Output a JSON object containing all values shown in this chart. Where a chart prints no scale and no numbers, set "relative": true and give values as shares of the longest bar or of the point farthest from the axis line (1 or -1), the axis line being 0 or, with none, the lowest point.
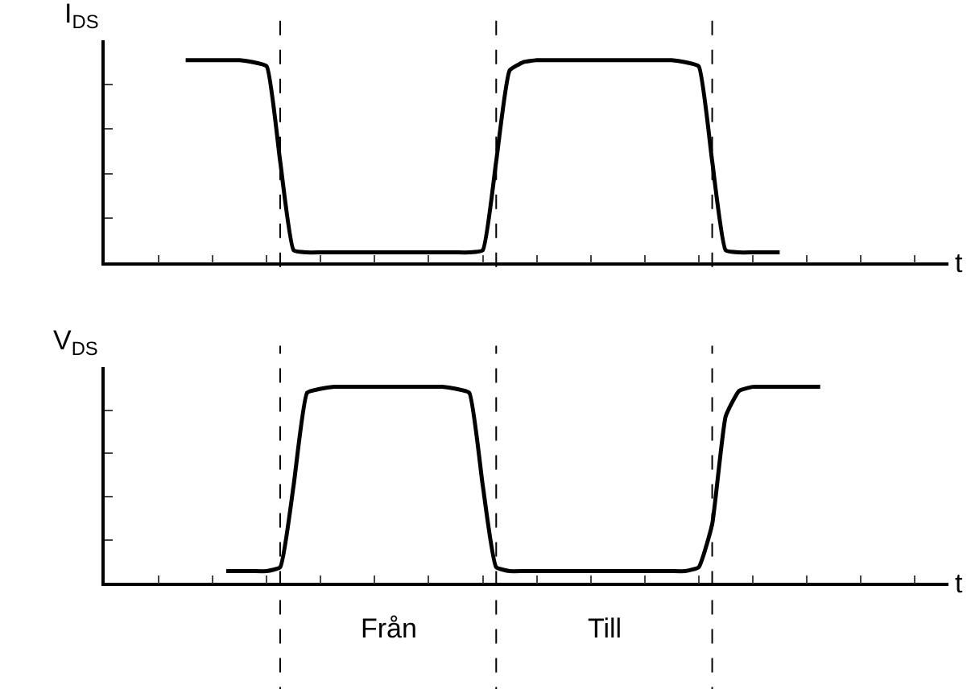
{
  "chart_data": [
    {
      "type": "line",
      "relative": true,
      "ylabel": "I$_{DS}$",
      "xlabel": "t",
      "grid": "x",
      "categories": [
        null,
        null,
        null,
        null,
        null,
        null,
        null,
        null,
        null,
        null,
        null,
        null,
        null,
        null,
        null,
        null,
        null,
        null,
        null,
        null,
        null,
        null,
        null,
        null,
        null,
        null,
        null,
        null,
        null,
        null,
        null,
        null,
        null,
        null,
        null,
        null,
        null,
        null,
        null,
        null,
        null,
        null,
        null,
        null,
        null,
        null,
        null,
        null,
        null,
        null,
        null,
        null,
        null,
        null,
        null,
        null,
        null,
        null,
        null,
        null,
        null,
        null,
        null
      ],
      "series": [
        {
          "color": "#000000",
          "values": [
            null,
            null,
            null,
            null,
            null,
            null,
            1,
            1,
            1,
            1,
            1,
            0.99,
            0.97,
            0.5,
            0.06,
            0.05,
            0.05,
            0.05,
            0.05,
            0.05,
            0.05,
            0.05,
            0.05,
            0.05,
            0.05,
            0.05,
            0.05,
            0.05,
            0.06,
            0.5,
            0.95,
            0.99,
            1,
            1,
            1,
            1,
            1,
            1,
            1,
            1,
            1,
            1,
            1,
            0.99,
            0.97,
            0.5,
            0.06,
            0.05,
            0.05,
            0.05,
            0.05,
            null,
            null,
            null,
            null,
            null,
            null,
            null,
            null,
            null,
            null,
            null,
            null
          ]
        }
      ]
    },
    {
      "type": "line",
      "relative": true,
      "ylabel": "V$_{DS}$",
      "xlabel": "t",
      "grid": "x",
      "categories": [
        null,
        null,
        null,
        null,
        null,
        null,
        null,
        null,
        null,
        null,
        null,
        null,
        null,
        null,
        null,
        null,
        null,
        null,
        null,
        null,
        null,
        null,
        null,
        null,
        null,
        null,
        null,
        null,
        null,
        null,
        null,
        null,
        null,
        null,
        null,
        null,
        null,
        null,
        null,
        null,
        null,
        null,
        null,
        null,
        null,
        null,
        null,
        null,
        null,
        null,
        null,
        null,
        null,
        null,
        null,
        null,
        null,
        null,
        null,
        null,
        null,
        null,
        null
      ],
      "series": [
        {
          "color": "#000000",
          "values": [
            null,
            null,
            null,
            null,
            null,
            null,
            null,
            null,
            null,
            0.06,
            0.06,
            0.06,
            0.06,
            0.08,
            0.5,
            0.97,
            0.99,
            1,
            1,
            1,
            1,
            1,
            1,
            1,
            1,
            1,
            0.99,
            0.97,
            0.5,
            0.08,
            0.06,
            0.06,
            0.06,
            0.06,
            0.06,
            0.06,
            0.06,
            0.06,
            0.06,
            0.06,
            0.06,
            0.06,
            0.06,
            0.06,
            0.08,
            0.3,
            0.85,
            0.98,
            1,
            1,
            1,
            1,
            1,
            1,
            null,
            null,
            null,
            null,
            null,
            null,
            null,
            null,
            null
          ]
        }
      ],
      "annotations": [
        "Från",
        "Till"
      ]
    }
  ]
}
